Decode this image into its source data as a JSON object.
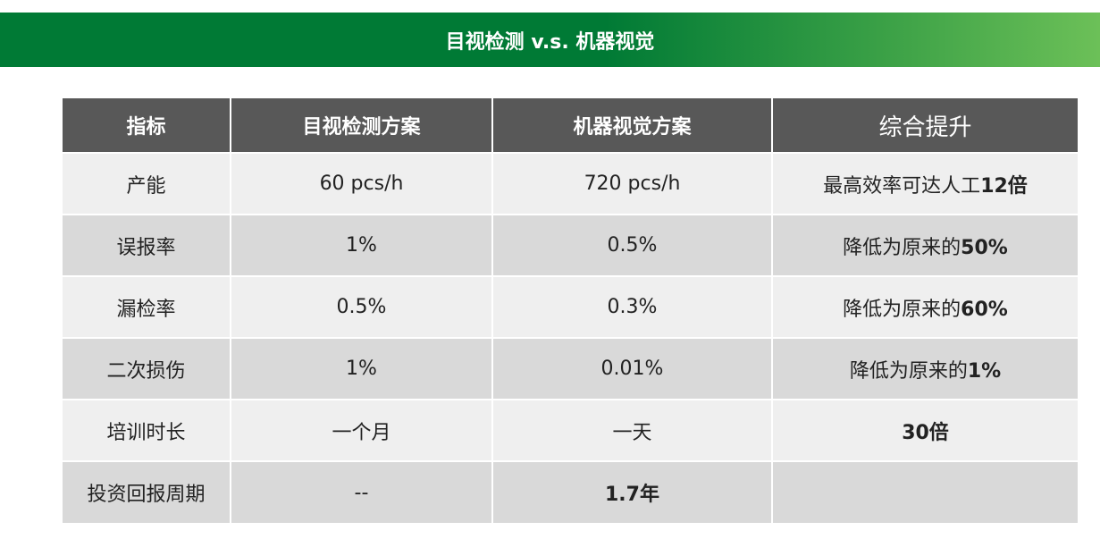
{
  "title": "目视检测 v.s. 机器视觉",
  "colors": {
    "banner_dark": "#007a35",
    "banner_light": "#6cc058",
    "header_bg": "#585858",
    "row_light": "#efefef",
    "row_dark": "#d9d9d9"
  },
  "table": {
    "headers": [
      "指标",
      "目视检测方案",
      "机器视觉方案",
      "综合提升"
    ],
    "rows": [
      {
        "metric": "产能",
        "manual": "60 pcs/h",
        "machine": "720 pcs/h",
        "gain_prefix": "最高效率可达人工",
        "gain_bold": "12倍",
        "machine_bold": ""
      },
      {
        "metric": "误报率",
        "manual": "1%",
        "machine": "0.5%",
        "gain_prefix": "降低为原来的",
        "gain_bold": "50%",
        "machine_bold": ""
      },
      {
        "metric": "漏检率",
        "manual": "0.5%",
        "machine": "0.3%",
        "gain_prefix": "降低为原来的",
        "gain_bold": "60%",
        "machine_bold": ""
      },
      {
        "metric": "二次损伤",
        "manual": "1%",
        "machine": "0.01%",
        "gain_prefix": "降低为原来的",
        "gain_bold": "1%",
        "machine_bold": ""
      },
      {
        "metric": "培训时长",
        "manual": "一个月",
        "machine": "一天",
        "gain_prefix": "",
        "gain_bold": "30倍",
        "machine_bold": ""
      },
      {
        "metric": "投资回报周期",
        "manual": "--",
        "machine": "",
        "gain_prefix": "",
        "gain_bold": "",
        "machine_bold": "1.7年"
      }
    ]
  }
}
